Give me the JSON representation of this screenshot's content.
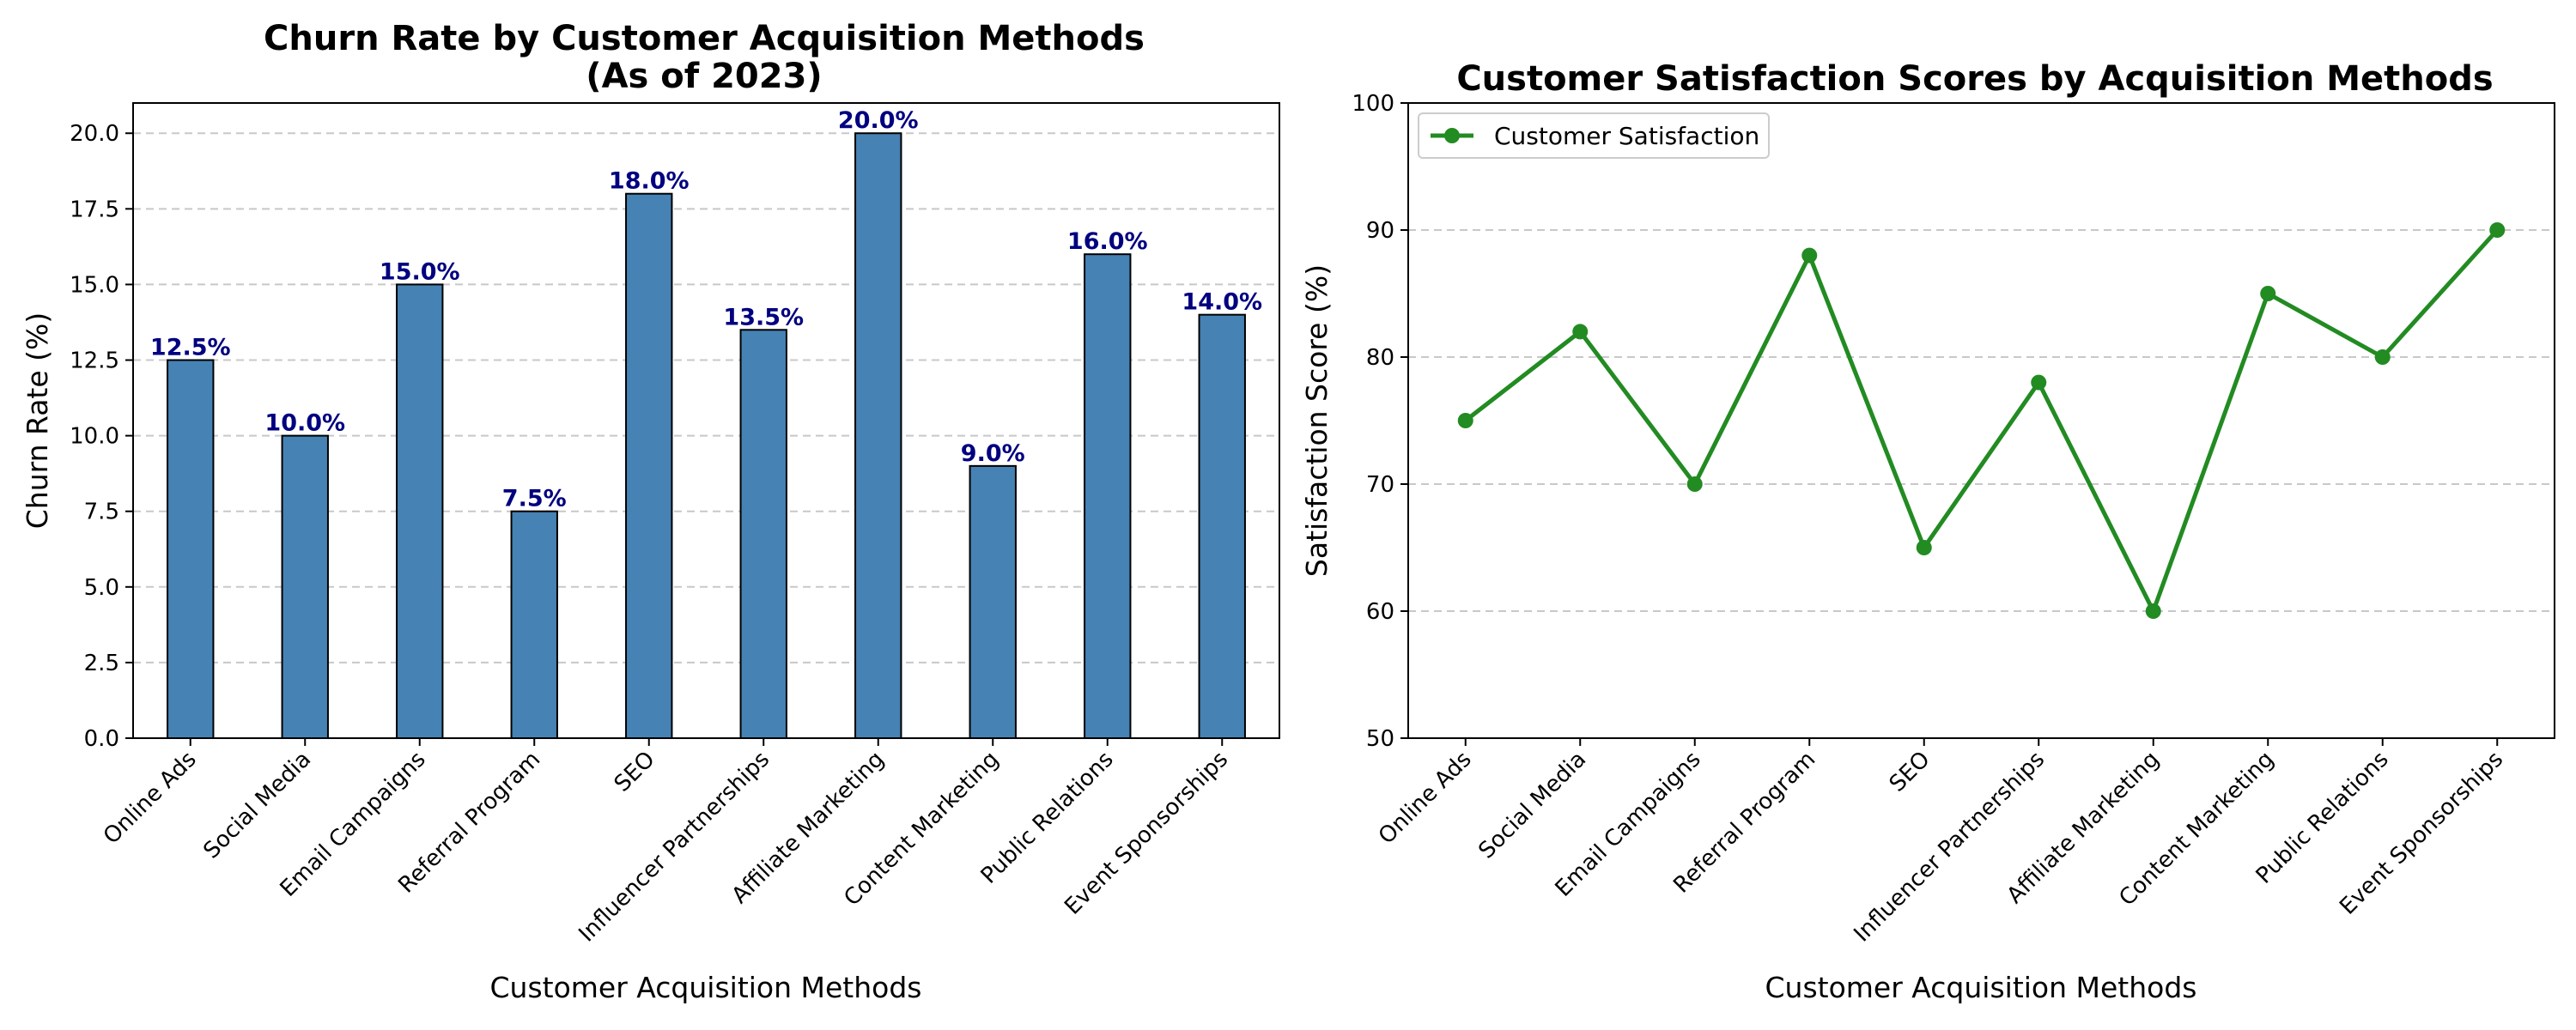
{
  "chart_data": [
    {
      "type": "bar",
      "title_lines": [
        "Churn Rate by Customer Acquisition Methods",
        "(As of 2023)"
      ],
      "xlabel": "Customer Acquisition Methods",
      "ylabel": "Churn Rate (%)",
      "categories": [
        "Online Ads",
        "Social Media",
        "Email Campaigns",
        "Referral Program",
        "SEO",
        "Influencer Partnerships",
        "Affiliate Marketing",
        "Content Marketing",
        "Public Relations",
        "Event Sponsorships"
      ],
      "values": [
        12.5,
        10.0,
        15.0,
        7.5,
        18.0,
        13.5,
        20.0,
        9.0,
        16.0,
        14.0
      ],
      "value_labels": [
        "12.5%",
        "10.0%",
        "15.0%",
        "7.5%",
        "18.0%",
        "13.5%",
        "20.0%",
        "9.0%",
        "16.0%",
        "14.0%"
      ],
      "ylim": [
        0,
        21
      ],
      "yticks": [
        0,
        2.5,
        5,
        7.5,
        10,
        12.5,
        15,
        17.5,
        20
      ],
      "ytick_labels": [
        "0.0",
        "2.5",
        "5.0",
        "7.5",
        "10.0",
        "12.5",
        "15.0",
        "17.5",
        "20.0"
      ],
      "grid": "y-dashed",
      "bar_color": "#4682b4",
      "bar_edge_color": "#000000",
      "label_color": "#000080"
    },
    {
      "type": "line",
      "title": "Customer Satisfaction Scores by Acquisition Methods",
      "xlabel": "Customer Acquisition Methods",
      "ylabel": "Satisfaction Score (%)",
      "categories": [
        "Online Ads",
        "Social Media",
        "Email Campaigns",
        "Referral Program",
        "SEO",
        "Influencer Partnerships",
        "Affiliate Marketing",
        "Content Marketing",
        "Public Relations",
        "Event Sponsorships"
      ],
      "series": [
        {
          "name": "Customer Satisfaction",
          "values": [
            75,
            82,
            70,
            88,
            65,
            78,
            60,
            85,
            80,
            90
          ],
          "color": "#228b22"
        }
      ],
      "ylim": [
        50,
        100
      ],
      "yticks": [
        50,
        60,
        70,
        80,
        90,
        100
      ],
      "ytick_labels": [
        "50",
        "60",
        "70",
        "80",
        "90",
        "100"
      ],
      "grid": "y-dashed",
      "legend": "top-left"
    }
  ]
}
